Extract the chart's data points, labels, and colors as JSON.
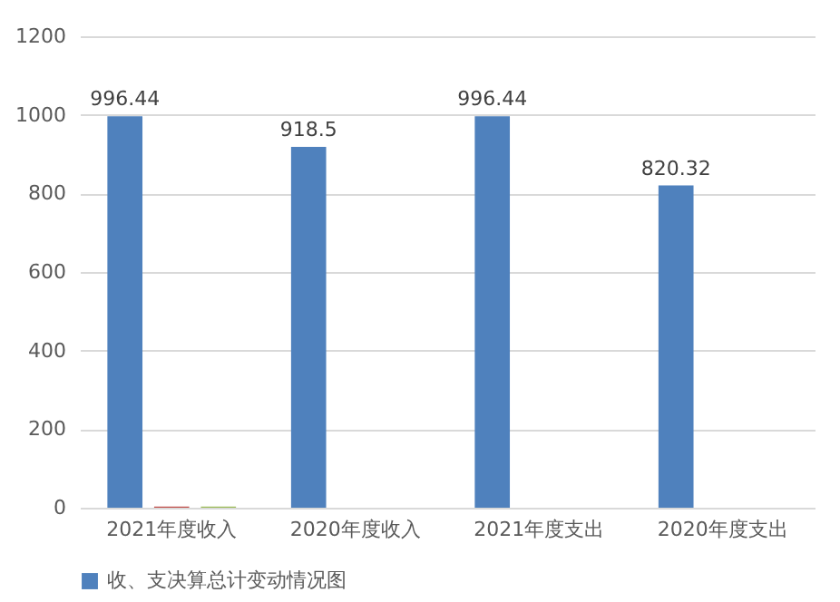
{
  "chart_data": {
    "type": "bar",
    "categories": [
      "2021年度收入",
      "2020年度收入",
      "2021年度支出",
      "2020年度支出"
    ],
    "series": [
      {
        "name": "收、支决算总计变动情况图",
        "color": "#4f81bd",
        "values": [
          996.44,
          918.5,
          996.44,
          820.32
        ],
        "value_labels": [
          "996.44",
          "918.5",
          "996.44",
          "820.32"
        ]
      },
      {
        "color": "#c0504d",
        "values": [
          3,
          null,
          null,
          null
        ]
      },
      {
        "color": "#9bbb59",
        "values": [
          3,
          null,
          null,
          null
        ]
      }
    ],
    "ylim": [
      0,
      1200
    ],
    "yticks": [
      0,
      200,
      400,
      600,
      800,
      1000,
      1200
    ],
    "grid": "y",
    "legend": "bottom"
  }
}
